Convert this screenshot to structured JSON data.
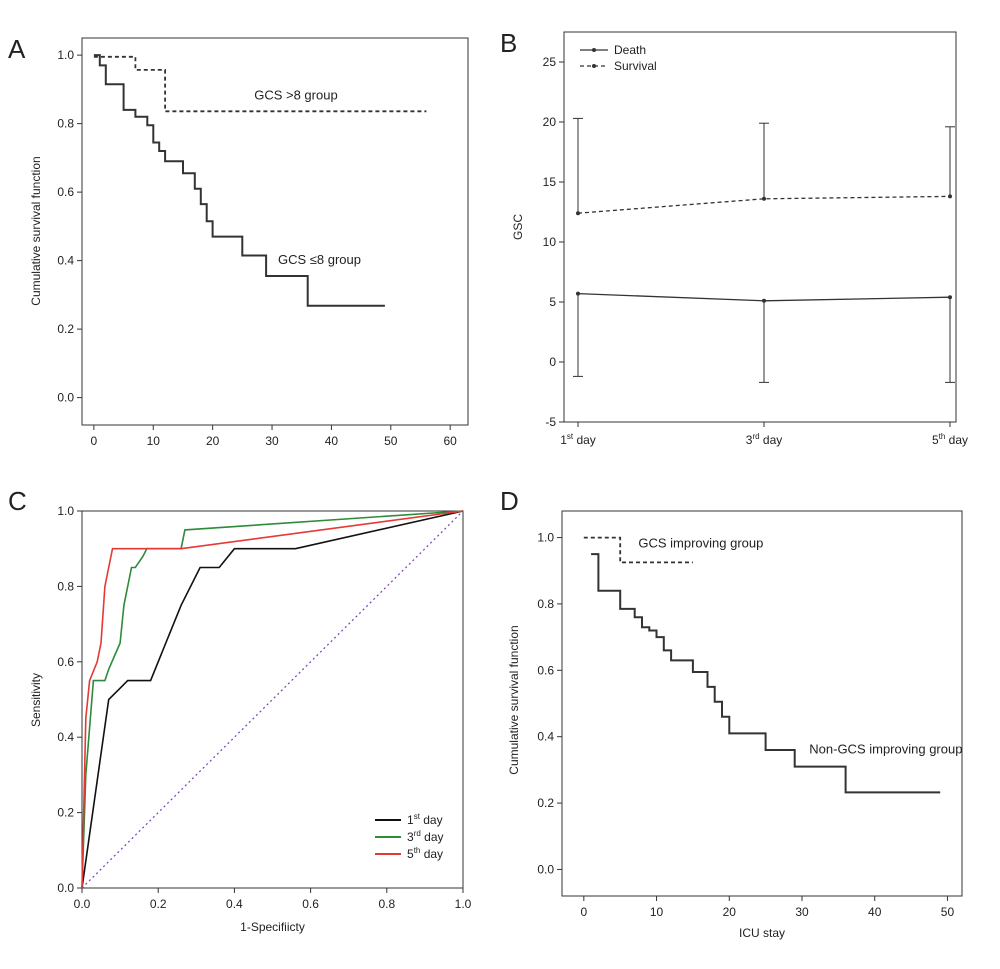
{
  "chart_data": [
    {
      "panel": "A",
      "type": "line",
      "subtype": "kaplan-meier",
      "title": "",
      "xlabel": "",
      "ylabel": "Cumulative survival function",
      "xlim": [
        -2,
        63
      ],
      "ylim": [
        -0.08,
        1.05
      ],
      "xticks": [
        0,
        10,
        20,
        30,
        40,
        50,
        60
      ],
      "yticks": [
        0.0,
        0.2,
        0.4,
        0.6,
        0.8,
        1.0
      ],
      "tick_format": {
        "x": "int",
        "y": "fixed1"
      },
      "series": [
        {
          "name": "GCS >8 group",
          "style": "dashed",
          "color": "#333333",
          "x": [
            0,
            7,
            7,
            12,
            12,
            56
          ],
          "y": [
            0.995,
            0.995,
            0.957,
            0.957,
            0.836,
            0.836
          ]
        },
        {
          "name": "GCS ≤8 group",
          "style": "solid",
          "color": "#333333",
          "x": [
            0,
            1,
            1,
            2,
            2,
            5,
            5,
            7,
            7,
            9,
            9,
            10,
            10,
            11,
            11,
            12,
            12,
            15,
            15,
            17,
            17,
            18,
            18,
            19,
            19,
            20,
            20,
            25,
            25,
            29,
            29,
            36,
            36,
            49
          ],
          "y": [
            1.0,
            1.0,
            0.97,
            0.97,
            0.915,
            0.915,
            0.84,
            0.84,
            0.82,
            0.82,
            0.795,
            0.795,
            0.745,
            0.745,
            0.72,
            0.72,
            0.69,
            0.69,
            0.655,
            0.655,
            0.61,
            0.61,
            0.565,
            0.565,
            0.515,
            0.515,
            0.47,
            0.47,
            0.415,
            0.415,
            0.355,
            0.355,
            0.268,
            0.268
          ]
        }
      ],
      "annotations": [
        {
          "text": "GCS >8 group",
          "x": 27,
          "y": 0.87
        },
        {
          "text": "GCS ≤8 group",
          "x": 31,
          "y": 0.39
        }
      ]
    },
    {
      "panel": "B",
      "type": "line",
      "title": "",
      "xlabel": "",
      "ylabel": "GSC",
      "ylim": [
        -5,
        27.5
      ],
      "yticks": [
        -5,
        0,
        5,
        10,
        15,
        20,
        25
      ],
      "categories": [
        "1st day",
        "3rd day",
        "5th day"
      ],
      "category_sup": [
        [
          "1",
          "st",
          " day"
        ],
        [
          "3",
          "rd",
          " day"
        ],
        [
          "5",
          "th",
          " day"
        ]
      ],
      "legend": {
        "position": "top-left",
        "entries": [
          "Death",
          "Survival"
        ]
      },
      "series": [
        {
          "name": "Death",
          "style": "solid",
          "color": "#333333",
          "values": [
            5.7,
            5.1,
            5.4
          ],
          "error_low": [
            -1.2,
            -1.7,
            -1.7
          ]
        },
        {
          "name": "Survival",
          "style": "dashed",
          "color": "#333333",
          "values": [
            12.4,
            13.6,
            13.8
          ],
          "error_high": [
            20.3,
            19.9,
            19.6
          ]
        }
      ]
    },
    {
      "panel": "C",
      "type": "line",
      "subtype": "roc",
      "title": "",
      "xlabel": "1-Specifiicty",
      "ylabel": "Sensitivity",
      "xlim": [
        0,
        1
      ],
      "ylim": [
        0,
        1
      ],
      "xticks": [
        0.0,
        0.2,
        0.4,
        0.6,
        0.8,
        1.0
      ],
      "yticks": [
        0.0,
        0.2,
        0.4,
        0.6,
        0.8,
        1.0
      ],
      "tick_format": {
        "x": "fixed1",
        "y": "fixed1"
      },
      "legend": {
        "position": "bottom-right"
      },
      "series": [
        {
          "name": "1st day",
          "label_parts": [
            "1",
            "st",
            " day"
          ],
          "color": "#111111",
          "x": [
            0,
            0.07,
            0.1,
            0.12,
            0.18,
            0.2,
            0.22,
            0.26,
            0.31,
            0.36,
            0.4,
            0.56,
            1.0
          ],
          "y": [
            0,
            0.5,
            0.53,
            0.55,
            0.55,
            0.6,
            0.65,
            0.75,
            0.85,
            0.85,
            0.9,
            0.9,
            1.0
          ]
        },
        {
          "name": "3rd day",
          "label_parts": [
            "3",
            "rd",
            " day"
          ],
          "color": "#2e8b3a",
          "x": [
            0,
            0.01,
            0.03,
            0.06,
            0.07,
            0.1,
            0.11,
            0.13,
            0.14,
            0.16,
            0.17,
            0.19,
            0.26,
            0.27,
            1.0
          ],
          "y": [
            0,
            0.3,
            0.55,
            0.55,
            0.58,
            0.65,
            0.75,
            0.85,
            0.85,
            0.88,
            0.9,
            0.9,
            0.9,
            0.95,
            1.0
          ]
        },
        {
          "name": "5th day",
          "label_parts": [
            "5",
            "th",
            " day"
          ],
          "color": "#e53935",
          "x": [
            0,
            0.01,
            0.02,
            0.04,
            0.05,
            0.06,
            0.07,
            0.08,
            0.09,
            0.26,
            1.0
          ],
          "y": [
            0,
            0.45,
            0.55,
            0.6,
            0.65,
            0.8,
            0.85,
            0.9,
            0.9,
            0.9,
            1.0
          ]
        },
        {
          "name": "reference",
          "color": "#7b3fb8",
          "style": "dotted",
          "in_legend": false,
          "x": [
            0,
            1
          ],
          "y": [
            0,
            1
          ]
        }
      ]
    },
    {
      "panel": "D",
      "type": "line",
      "subtype": "kaplan-meier",
      "title": "",
      "xlabel": "ICU stay",
      "ylabel": "Cumulative survival function",
      "xlim": [
        -3,
        52
      ],
      "ylim": [
        -0.08,
        1.08
      ],
      "xticks": [
        0,
        10,
        20,
        30,
        40,
        50
      ],
      "yticks": [
        0.0,
        0.2,
        0.4,
        0.6,
        0.8,
        1.0
      ],
      "tick_format": {
        "x": "int",
        "y": "fixed1"
      },
      "series": [
        {
          "name": "GCS improving group",
          "style": "dashed",
          "color": "#333333",
          "x": [
            0,
            5,
            5,
            15
          ],
          "y": [
            1.0,
            1.0,
            0.925,
            0.925
          ]
        },
        {
          "name": "Non-GCS improving group",
          "style": "solid",
          "color": "#333333",
          "x": [
            1,
            2,
            2,
            5,
            5,
            7,
            7,
            8,
            8,
            9,
            9,
            10,
            10,
            11,
            11,
            12,
            12,
            15,
            15,
            17,
            17,
            18,
            18,
            19,
            19,
            20,
            20,
            25,
            25,
            29,
            29,
            36,
            36,
            49
          ],
          "y": [
            0.95,
            0.95,
            0.84,
            0.84,
            0.785,
            0.785,
            0.76,
            0.76,
            0.73,
            0.73,
            0.72,
            0.72,
            0.7,
            0.7,
            0.66,
            0.66,
            0.63,
            0.63,
            0.595,
            0.595,
            0.55,
            0.55,
            0.505,
            0.505,
            0.46,
            0.46,
            0.41,
            0.41,
            0.36,
            0.36,
            0.31,
            0.31,
            0.232,
            0.232
          ]
        }
      ],
      "annotations": [
        {
          "text": "GCS improving group",
          "x": 7.5,
          "y": 0.97
        },
        {
          "text": "Non-GCS improving group",
          "x": 31,
          "y": 0.35
        }
      ]
    }
  ],
  "panels": {
    "a": "A",
    "b": "B",
    "c": "C",
    "d": "D"
  }
}
